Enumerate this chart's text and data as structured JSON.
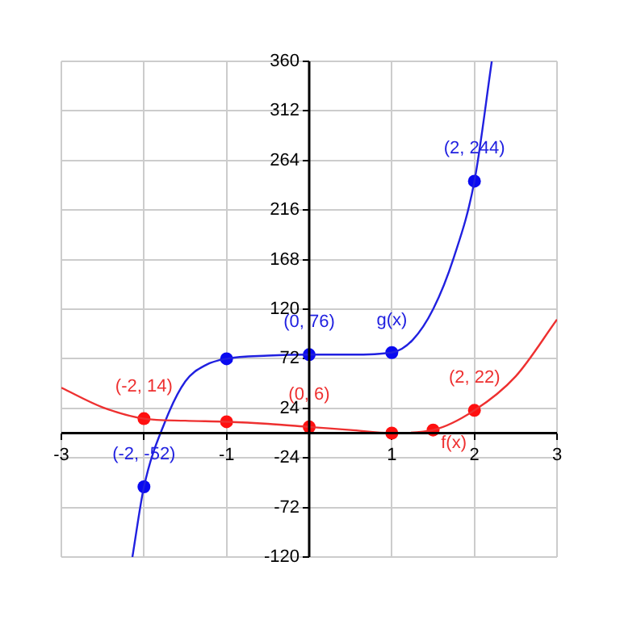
{
  "chart_data": {
    "type": "line",
    "series": [
      {
        "color": "#ee3030",
        "marker": "none",
        "x": [
          -3,
          -2.5,
          -2,
          -1.5,
          -1,
          -0.5,
          0,
          0.5,
          1,
          1.5,
          2,
          2.5,
          3
        ],
        "values": [
          44,
          25,
          14,
          12,
          11,
          9,
          6,
          3,
          0,
          3,
          22,
          55,
          110
        ]
      },
      {
        "type": "scatter",
        "color": "#ff1010",
        "marker": "circle",
        "x": [
          -2,
          -1,
          0,
          1,
          1.5,
          2
        ],
        "values": [
          14,
          11,
          6,
          0,
          3,
          22
        ]
      },
      {
        "color": "#2020e0",
        "marker": "none",
        "x": [
          -2.14,
          -2,
          -1.75,
          -1.5,
          -1.25,
          -1,
          -0.5,
          0,
          0.5,
          1,
          1.25,
          1.5,
          1.75,
          2,
          2.21
        ],
        "values": [
          -120,
          -52,
          10,
          50,
          66,
          72,
          75,
          76,
          76,
          78,
          90,
          120,
          170,
          244,
          360
        ]
      },
      {
        "type": "scatter",
        "color": "#0a0af0",
        "marker": "circle",
        "x": [
          -2,
          -1,
          0,
          1,
          2
        ],
        "values": [
          -52,
          72,
          76,
          78,
          244
        ]
      }
    ],
    "xlim": [
      -3,
      3
    ],
    "ylim": [
      -120,
      360
    ],
    "xticks": [
      -3,
      {
        "value": -2,
        "label": null
      },
      -1,
      {
        "value": 0,
        "label": null
      },
      1,
      2,
      3
    ],
    "yticks": [
      -120,
      -72,
      -24,
      {
        "value": 0,
        "label": null
      },
      24,
      72,
      120,
      168,
      216,
      264,
      312,
      360
    ],
    "grid": true,
    "legend": false,
    "annotations": [
      {
        "text": "(-2, 14)",
        "x": -2,
        "y": 14
      },
      {
        "text": "(-2, -52)",
        "x": -2,
        "y": -52
      },
      {
        "text": "(0, 6)",
        "x": 0,
        "y": 6
      },
      {
        "text": "(0, 76)",
        "x": 0,
        "y": 76
      },
      {
        "text": "g(x)",
        "x": 1,
        "y": 78
      },
      {
        "text": "(2, 244)",
        "x": 2,
        "y": 244
      },
      {
        "text": "(2, 22)",
        "x": 2,
        "y": 22
      },
      {
        "text": "f(x)",
        "x": 1.75,
        "y": 12.5
      }
    ]
  }
}
